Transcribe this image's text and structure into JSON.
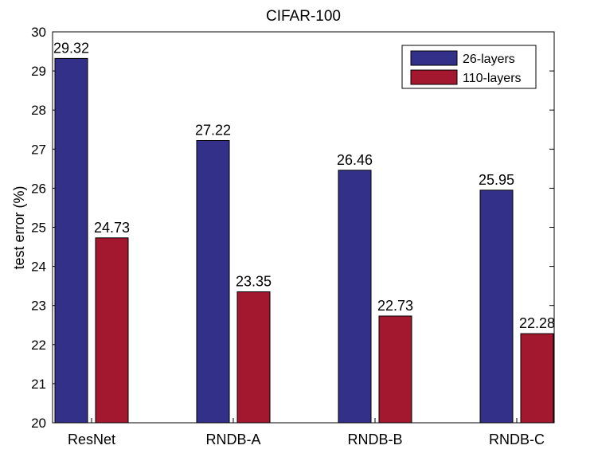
{
  "chart_data": {
    "type": "bar",
    "title": "CIFAR-100",
    "xlabel": "",
    "ylabel": "test error (%)",
    "ylim": [
      20,
      30
    ],
    "yticks": [
      20,
      21,
      22,
      23,
      24,
      25,
      26,
      27,
      28,
      29,
      30
    ],
    "categories": [
      "ResNet",
      "RNDB-A",
      "RNDB-B",
      "RNDB-C"
    ],
    "series": [
      {
        "name": "26-layers",
        "color": "#33308a",
        "values": [
          29.32,
          27.22,
          26.46,
          25.95
        ]
      },
      {
        "name": "110-layers",
        "color": "#a3172f",
        "values": [
          24.73,
          23.35,
          22.73,
          22.28
        ]
      }
    ],
    "grid": false,
    "legend_position": "top-right"
  }
}
